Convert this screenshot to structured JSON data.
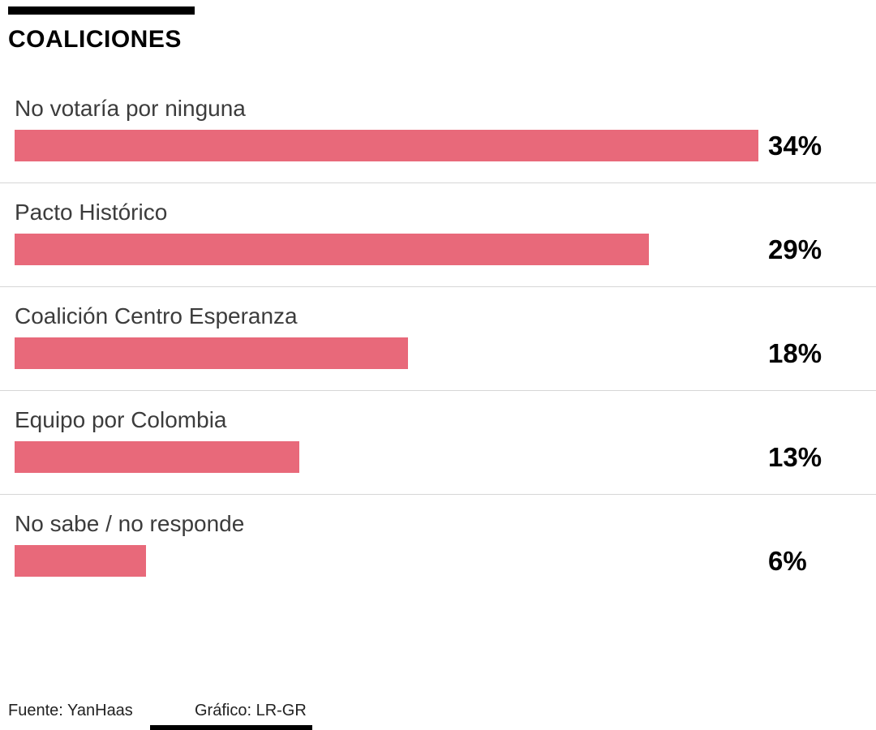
{
  "header": {
    "title": "COALICIONES"
  },
  "footer": {
    "source": "Fuente: YanHaas",
    "credit": "Gráfico: LR-GR"
  },
  "style": {
    "bar_color": "#e8697a"
  },
  "chart_data": {
    "type": "bar",
    "orientation": "horizontal",
    "title": "COALICIONES",
    "categories": [
      "No votaría por ninguna",
      "Pacto Histórico",
      "Coalición Centro Esperanza",
      "Equipo por Colombia",
      "No sabe / no responde"
    ],
    "values": [
      34,
      29,
      18,
      13,
      6
    ],
    "value_labels": [
      "34%",
      "29%",
      "18%",
      "13%",
      "6%"
    ],
    "xlim": [
      0,
      34
    ],
    "grid": false,
    "legend": false
  }
}
